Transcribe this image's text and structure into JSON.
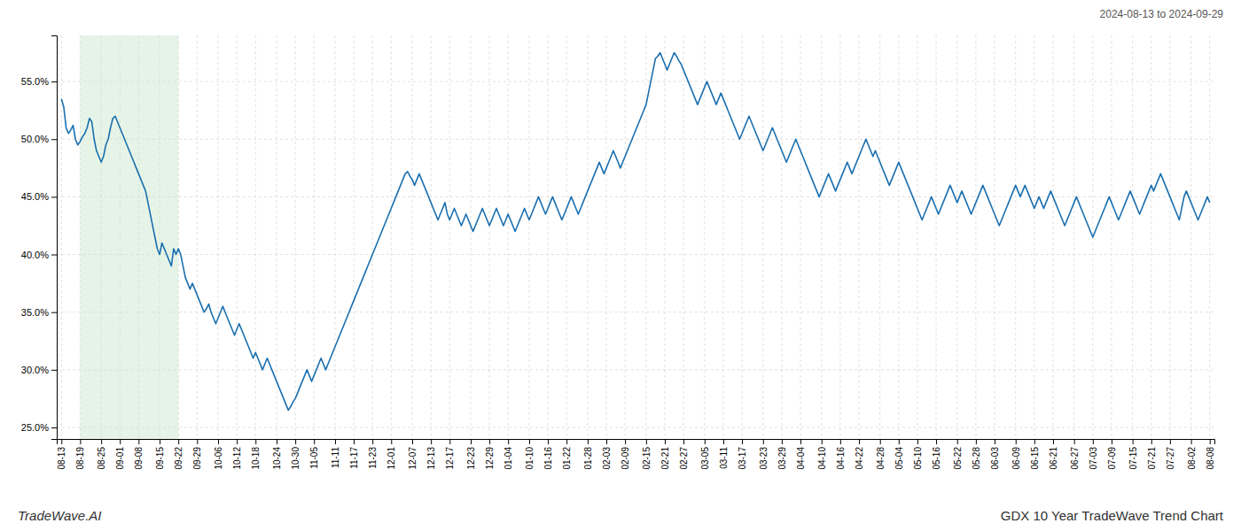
{
  "chart_data": {
    "type": "line",
    "title": "GDX 10 Year TradeWave Trend Chart",
    "subtitle": "2024-08-13 to 2024-09-29",
    "annotations": [
      "TradeWave.AI"
    ],
    "color": "#1a6faf",
    "grid": true,
    "ylim": [
      24.0,
      59.0
    ],
    "yticks": [
      {
        "value": 25.0,
        "label": "25.0%"
      },
      {
        "value": 30.0,
        "label": "30.0%"
      },
      {
        "value": 35.0,
        "label": "35.0%"
      },
      {
        "value": 40.0,
        "label": "40.0%"
      },
      {
        "value": 45.0,
        "label": "45.0%"
      },
      {
        "value": 50.0,
        "label": "50.0%"
      },
      {
        "value": 55.0,
        "label": "55.0%"
      }
    ],
    "shaded_region": {
      "start": "08-19",
      "end": "09-22",
      "color": "#c8e6c9"
    },
    "categories": [
      "08-13",
      null,
      null,
      null,
      null,
      null,
      null,
      null,
      "08-19",
      null,
      null,
      null,
      null,
      null,
      null,
      null,
      null,
      "08-25",
      null,
      null,
      null,
      null,
      null,
      null,
      null,
      "09-01",
      null,
      null,
      null,
      null,
      null,
      null,
      null,
      "09-08",
      null,
      null,
      null,
      null,
      null,
      null,
      null,
      null,
      "09-15",
      null,
      null,
      null,
      null,
      null,
      null,
      null,
      "09-22",
      null,
      null,
      null,
      null,
      null,
      null,
      null,
      "09-29",
      null,
      null,
      null,
      null,
      null,
      null,
      null,
      null,
      "10-06",
      null,
      null,
      null,
      null,
      null,
      null,
      null,
      "10-12",
      null,
      null,
      null,
      null,
      null,
      null,
      null,
      "10-18",
      null,
      null,
      null,
      null,
      null,
      null,
      null,
      null,
      "10-24",
      null,
      null,
      null,
      null,
      null,
      null,
      null,
      "10-30",
      null,
      null,
      null,
      null,
      null,
      null,
      null,
      "11-05",
      null,
      null,
      null,
      null,
      null,
      null,
      null,
      null,
      "11-11",
      null,
      null,
      null,
      null,
      null,
      null,
      null,
      "11-17",
      null,
      null,
      null,
      null,
      null,
      null,
      null,
      "11-23",
      null,
      null,
      null,
      null,
      null,
      null,
      null,
      "12-01",
      null,
      null,
      null,
      null,
      null,
      null,
      null,
      null,
      "12-07",
      null,
      null,
      null,
      null,
      null,
      null,
      null,
      "12-13",
      null,
      null,
      null,
      null,
      null,
      null,
      null,
      "12-17",
      null,
      null,
      null,
      null,
      null,
      null,
      null,
      null,
      "12-23",
      null,
      null,
      null,
      null,
      null,
      null,
      null,
      "12-29",
      null,
      null,
      null,
      null,
      null,
      null,
      null,
      "01-04",
      null,
      null,
      null,
      null,
      null,
      null,
      null,
      null,
      "01-10",
      null,
      null,
      null,
      null,
      null,
      null,
      null,
      "01-16",
      null,
      null,
      null,
      null,
      null,
      null,
      null,
      "01-22",
      null,
      null,
      null,
      null,
      null,
      null,
      null,
      null,
      "01-28",
      null,
      null,
      null,
      null,
      null,
      null,
      null,
      "02-03",
      null,
      null,
      null,
      null,
      null,
      null,
      null,
      "02-09",
      null,
      null,
      null,
      null,
      null,
      null,
      null,
      null,
      "02-15",
      null,
      null,
      null,
      null,
      null,
      null,
      null,
      "02-21",
      null,
      null,
      null,
      null,
      null,
      null,
      null,
      "02-27",
      null,
      null,
      null,
      null,
      null,
      null,
      null,
      null,
      "03-05",
      null,
      null,
      null,
      null,
      null,
      null,
      null,
      "03-11",
      null,
      null,
      null,
      null,
      null,
      null,
      null,
      "03-17",
      null,
      null,
      null,
      null,
      null,
      null,
      null,
      null,
      "03-23",
      null,
      null,
      null,
      null,
      null,
      null,
      null,
      "03-29",
      null,
      null,
      null,
      null,
      null,
      null,
      null,
      "04-04",
      null,
      null,
      null,
      null,
      null,
      null,
      null,
      null,
      "04-10",
      null,
      null,
      null,
      null,
      null,
      null,
      null,
      "04-16",
      null,
      null,
      null,
      null,
      null,
      null,
      null,
      "04-22",
      null,
      null,
      null,
      null,
      null,
      null,
      null,
      null,
      "04-28",
      null,
      null,
      null,
      null,
      null,
      null,
      null,
      "05-04",
      null,
      null,
      null,
      null,
      null,
      null,
      null,
      "05-10",
      null,
      null,
      null,
      null,
      null,
      null,
      null,
      "05-16",
      null,
      null,
      null,
      null,
      null,
      null,
      null,
      null,
      "05-22",
      null,
      null,
      null,
      null,
      null,
      null,
      null,
      "05-28",
      null,
      null,
      null,
      null,
      null,
      null,
      null,
      "06-03",
      null,
      null,
      null,
      null,
      null,
      null,
      null,
      null,
      "06-09",
      null,
      null,
      null,
      null,
      null,
      null,
      null,
      "06-15",
      null,
      null,
      null,
      null,
      null,
      null,
      null,
      "06-21",
      null,
      null,
      null,
      null,
      null,
      null,
      null,
      null,
      "06-27",
      null,
      null,
      null,
      null,
      null,
      null,
      null,
      "07-03",
      null,
      null,
      null,
      null,
      null,
      null,
      null,
      "07-09",
      null,
      null,
      null,
      null,
      null,
      null,
      null,
      null,
      "07-15",
      null,
      null,
      null,
      null,
      null,
      null,
      null,
      "07-21",
      null,
      null,
      null,
      null,
      null,
      null,
      null,
      "07-27",
      null,
      null,
      null,
      null,
      null,
      null,
      null,
      null,
      "08-02",
      null,
      null,
      null,
      null,
      null,
      null,
      null,
      "08-08"
    ],
    "values": [
      53.5,
      52.8,
      51.0,
      50.5,
      50.8,
      51.2,
      50.0,
      49.5,
      49.8,
      50.2,
      50.5,
      51.0,
      51.8,
      51.5,
      50.0,
      49.0,
      48.5,
      48.0,
      48.5,
      49.5,
      50.0,
      51.0,
      51.8,
      52.0,
      51.5,
      51.0,
      50.5,
      50.0,
      49.5,
      49.0,
      48.5,
      48.0,
      47.5,
      47.0,
      46.5,
      46.0,
      45.5,
      44.5,
      43.5,
      42.5,
      41.5,
      40.5,
      40.0,
      41.0,
      40.5,
      40.0,
      39.5,
      39.0,
      40.5,
      40.0,
      40.5,
      40.0,
      39.0,
      38.0,
      37.5,
      37.0,
      37.5,
      37.0,
      36.5,
      36.0,
      35.5,
      35.0,
      35.3,
      35.7,
      35.0,
      34.5,
      34.0,
      34.5,
      35.0,
      35.5,
      35.0,
      34.5,
      34.0,
      33.5,
      33.0,
      33.5,
      34.0,
      33.5,
      33.0,
      32.5,
      32.0,
      31.5,
      31.0,
      31.5,
      31.0,
      30.5,
      30.0,
      30.5,
      31.0,
      30.5,
      30.0,
      29.5,
      29.0,
      28.5,
      28.0,
      27.5,
      27.0,
      26.5,
      26.8,
      27.2,
      27.5,
      28.0,
      28.5,
      29.0,
      29.5,
      30.0,
      29.5,
      29.0,
      29.5,
      30.0,
      30.5,
      31.0,
      30.5,
      30.0,
      30.5,
      31.0,
      31.5,
      32.0,
      32.5,
      33.0,
      33.5,
      34.0,
      34.5,
      35.0,
      35.5,
      36.0,
      36.5,
      37.0,
      37.5,
      38.0,
      38.5,
      39.0,
      39.5,
      40.0,
      40.5,
      41.0,
      41.5,
      42.0,
      42.5,
      43.0,
      43.5,
      44.0,
      44.5,
      45.0,
      45.5,
      46.0,
      46.5,
      47.0,
      47.2,
      46.8,
      46.5,
      46.0,
      46.5,
      47.0,
      46.5,
      46.0,
      45.5,
      45.0,
      44.5,
      44.0,
      43.5,
      43.0,
      43.5,
      44.0,
      44.5,
      43.5,
      43.0,
      43.5,
      44.0,
      43.5,
      43.0,
      42.5,
      43.0,
      43.5,
      43.0,
      42.5,
      42.0,
      42.5,
      43.0,
      43.5,
      44.0,
      43.5,
      43.0,
      42.5,
      43.0,
      43.5,
      44.0,
      43.5,
      43.0,
      42.5,
      43.0,
      43.5,
      43.0,
      42.5,
      42.0,
      42.5,
      43.0,
      43.5,
      44.0,
      43.5,
      43.0,
      43.5,
      44.0,
      44.5,
      45.0,
      44.5,
      44.0,
      43.5,
      44.0,
      44.5,
      45.0,
      44.5,
      44.0,
      43.5,
      43.0,
      43.5,
      44.0,
      44.5,
      45.0,
      44.5,
      44.0,
      43.5,
      44.0,
      44.5,
      45.0,
      45.5,
      46.0,
      46.5,
      47.0,
      47.5,
      48.0,
      47.5,
      47.0,
      47.5,
      48.0,
      48.5,
      49.0,
      48.5,
      48.0,
      47.5,
      48.0,
      48.5,
      49.0,
      49.5,
      50.0,
      50.5,
      51.0,
      51.5,
      52.0,
      52.5,
      53.0,
      54.0,
      55.0,
      56.0,
      57.0,
      57.2,
      57.5,
      57.0,
      56.5,
      56.0,
      56.5,
      57.0,
      57.5,
      57.2,
      56.8,
      56.5,
      56.0,
      55.5,
      55.0,
      54.5,
      54.0,
      53.5,
      53.0,
      53.5,
      54.0,
      54.5,
      55.0,
      54.5,
      54.0,
      53.5,
      53.0,
      53.5,
      54.0,
      53.5,
      53.0,
      52.5,
      52.0,
      51.5,
      51.0,
      50.5,
      50.0,
      50.5,
      51.0,
      51.5,
      52.0,
      51.5,
      51.0,
      50.5,
      50.0,
      49.5,
      49.0,
      49.5,
      50.0,
      50.5,
      51.0,
      50.5,
      50.0,
      49.5,
      49.0,
      48.5,
      48.0,
      48.5,
      49.0,
      49.5,
      50.0,
      49.5,
      49.0,
      48.5,
      48.0,
      47.5,
      47.0,
      46.5,
      46.0,
      45.5,
      45.0,
      45.5,
      46.0,
      46.5,
      47.0,
      46.5,
      46.0,
      45.5,
      46.0,
      46.5,
      47.0,
      47.5,
      48.0,
      47.5,
      47.0,
      47.5,
      48.0,
      48.5,
      49.0,
      49.5,
      50.0,
      49.5,
      49.0,
      48.5,
      49.0,
      48.5,
      48.0,
      47.5,
      47.0,
      46.5,
      46.0,
      46.5,
      47.0,
      47.5,
      48.0,
      47.5,
      47.0,
      46.5,
      46.0,
      45.5,
      45.0,
      44.5,
      44.0,
      43.5,
      43.0,
      43.5,
      44.0,
      44.5,
      45.0,
      44.5,
      44.0,
      43.5,
      44.0,
      44.5,
      45.0,
      45.5,
      46.0,
      45.5,
      45.0,
      44.5,
      45.0,
      45.5,
      45.0,
      44.5,
      44.0,
      43.5,
      44.0,
      44.5,
      45.0,
      45.5,
      46.0,
      45.5,
      45.0,
      44.5,
      44.0,
      43.5,
      43.0,
      42.5,
      43.0,
      43.5,
      44.0,
      44.5,
      45.0,
      45.5,
      46.0,
      45.5,
      45.0,
      45.5,
      46.0,
      45.5,
      45.0,
      44.5,
      44.0,
      44.5,
      45.0,
      44.5,
      44.0,
      44.5,
      45.0,
      45.5,
      45.0,
      44.5,
      44.0,
      43.5,
      43.0,
      42.5,
      43.0,
      43.5,
      44.0,
      44.5,
      45.0,
      44.5,
      44.0,
      43.5,
      43.0,
      42.5,
      42.0,
      41.5,
      42.0,
      42.5,
      43.0,
      43.5,
      44.0,
      44.5,
      45.0,
      44.5,
      44.0,
      43.5,
      43.0,
      43.5,
      44.0,
      44.5,
      45.0,
      45.5,
      45.0,
      44.5,
      44.0,
      43.5,
      44.0,
      44.5,
      45.0,
      45.5,
      46.0,
      45.5,
      46.0,
      46.5,
      47.0,
      46.5,
      46.0,
      45.5,
      45.0,
      44.5,
      44.0,
      43.5,
      43.0,
      44.0,
      45.0,
      45.5,
      45.0,
      44.5,
      44.0,
      43.5,
      43.0,
      43.5,
      44.0,
      44.5,
      45.0,
      44.5
    ]
  }
}
